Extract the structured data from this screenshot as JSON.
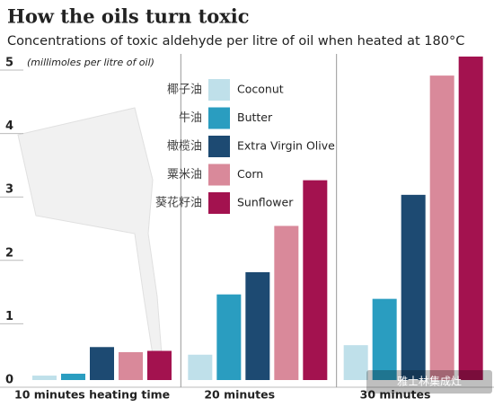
{
  "chart_data": {
    "type": "bar",
    "title": "How the oils turn toxic",
    "subtitle": "Concentrations of toxic aldehyde per litre of oil when heated at 180°C",
    "y_label": "(millimoles per litre of oil)",
    "watermark": "雅士林集成灶",
    "categories": [
      "10 minutes heating time",
      "20 minutes",
      "30 minutes"
    ],
    "series": [
      {
        "name": "Coconut",
        "name_zh": "椰子油",
        "color": "#bfe0ea",
        "values": [
          0.07,
          0.4,
          0.55
        ]
      },
      {
        "name": "Butter",
        "name_zh": "牛油",
        "color": "#2a9dc0",
        "values": [
          0.1,
          1.35,
          1.28
        ]
      },
      {
        "name": "Extra Virgin Olive",
        "name_zh": "橄榄油",
        "color": "#1d4a72",
        "values": [
          0.52,
          1.7,
          2.92
        ]
      },
      {
        "name": "Corn",
        "name_zh": "粟米油",
        "color": "#d9899a",
        "values": [
          0.44,
          2.43,
          4.8
        ]
      },
      {
        "name": "Sunflower",
        "name_zh": "葵花籽油",
        "color": "#a3124f",
        "values": [
          0.46,
          3.15,
          5.1
        ]
      }
    ],
    "ylim": [
      0,
      5.2
    ],
    "yticks": [
      0,
      1,
      2,
      3,
      4,
      5
    ],
    "grid": true
  }
}
